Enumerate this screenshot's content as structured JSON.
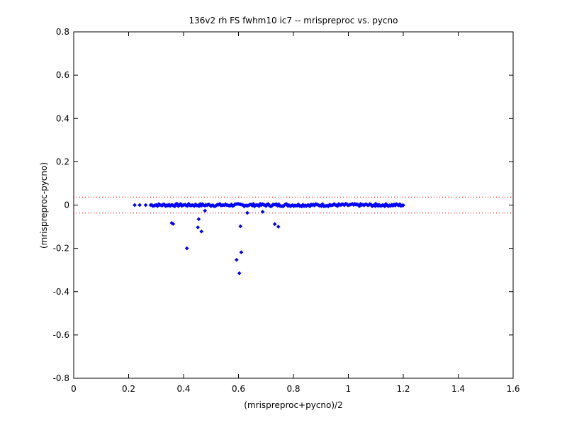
{
  "chart_data": {
    "type": "scatter",
    "title": "136v2 rh FS fwhm10 ic7 -- mrispreproc vs. pycno",
    "xlabel": "(mrispreproc+pycno)/2",
    "ylabel": "(mrispreproc-pycno)",
    "xlim": [
      0,
      1.6
    ],
    "ylim": [
      -0.8,
      0.8
    ],
    "x_ticks": [
      "0",
      "0.2",
      "0.4",
      "0.6",
      "0.8",
      "1",
      "1.2",
      "1.4",
      "1.6"
    ],
    "y_ticks": [
      "0.8",
      "0.6",
      "0.4",
      "0.2",
      "0",
      "-0.2",
      "-0.4",
      "-0.6",
      "-0.8"
    ],
    "grid": false,
    "reference_lines": [
      {
        "y": 0.037,
        "style": "dotted",
        "color": "#ff0000"
      },
      {
        "y": -0.037,
        "style": "dotted",
        "color": "#ff0000"
      }
    ],
    "series": [
      {
        "color": "#0000ff",
        "marker": "diamond",
        "band": {
          "x_start": 0.28,
          "x_end": 1.2,
          "y_center": 0.0,
          "y_spread": 0.006,
          "count": 220
        },
        "points": [
          {
            "x": 0.222,
            "y": 0.0
          },
          {
            "x": 0.24,
            "y": 0.0
          },
          {
            "x": 0.262,
            "y": 0.0
          },
          {
            "x": 0.357,
            "y": -0.083
          },
          {
            "x": 0.362,
            "y": -0.087
          },
          {
            "x": 0.412,
            "y": -0.2
          },
          {
            "x": 0.452,
            "y": -0.103
          },
          {
            "x": 0.455,
            "y": -0.065
          },
          {
            "x": 0.465,
            "y": -0.122
          },
          {
            "x": 0.478,
            "y": -0.026
          },
          {
            "x": 0.593,
            "y": -0.253
          },
          {
            "x": 0.603,
            "y": -0.315
          },
          {
            "x": 0.607,
            "y": -0.098
          },
          {
            "x": 0.61,
            "y": -0.218
          },
          {
            "x": 0.632,
            "y": -0.036
          },
          {
            "x": 0.688,
            "y": -0.031
          },
          {
            "x": 0.732,
            "y": -0.088
          },
          {
            "x": 0.745,
            "y": -0.1
          },
          {
            "x": 1.098,
            "y": -0.005
          },
          {
            "x": 1.132,
            "y": -0.004
          },
          {
            "x": 1.172,
            "y": 0.0
          },
          {
            "x": 1.19,
            "y": -0.003
          }
        ]
      }
    ]
  }
}
